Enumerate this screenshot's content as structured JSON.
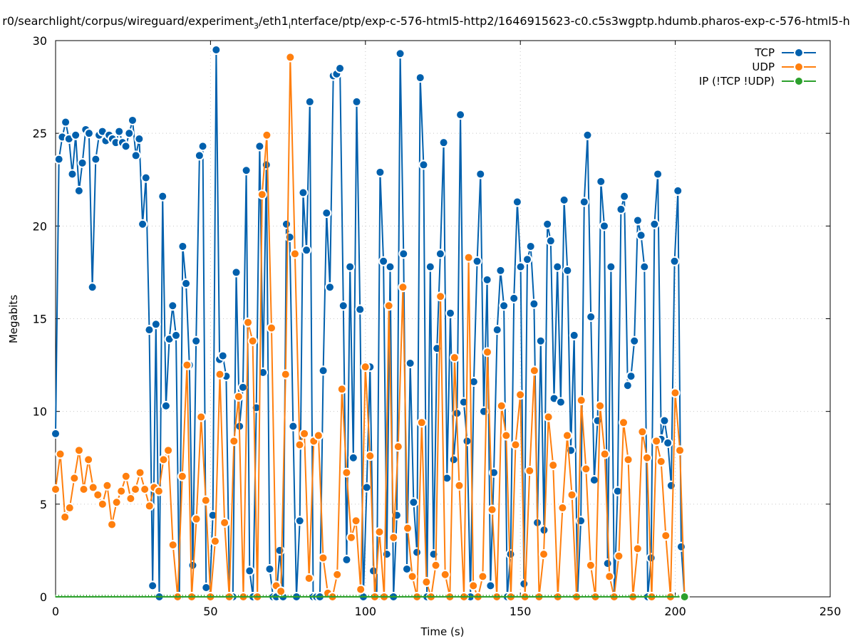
{
  "chart_data": {
    "type": "line",
    "title_parts": [
      "r0/searchlight/corpus/wireguard/experiment",
      "3",
      "/eth1",
      "i",
      "nterface/ptp/exp-c-576-html5-http2/1646915623-c0.c5s3wgptp.hdumb.pharos-exp-c-576-html5-h"
    ],
    "xlabel": "Time (s)",
    "ylabel": "Megabits",
    "xlim": [
      0,
      250
    ],
    "ylim": [
      0,
      30
    ],
    "xticks": [
      "0",
      "50",
      "100",
      "150",
      "200",
      "250"
    ],
    "yticks": [
      "0",
      "5",
      "10",
      "15",
      "20",
      "25",
      "30"
    ],
    "grid": true,
    "legend_position": "top-right",
    "x_end": 203,
    "series": [
      {
        "name": "TCP",
        "color": "#0060ad",
        "values": [
          8.8,
          23.6,
          24.8,
          25.6,
          24.7,
          22.8,
          24.9,
          21.9,
          23.4,
          25.2,
          25.0,
          16.7,
          23.6,
          24.9,
          25.1,
          24.6,
          24.9,
          24.7,
          24.5,
          25.1,
          24.5,
          24.3,
          25.0,
          25.7,
          23.8,
          24.7,
          20.1,
          22.6,
          14.4,
          0.6,
          14.7,
          0,
          21.6,
          10.3,
          13.9,
          15.7,
          14.1,
          0,
          18.9,
          16.9,
          12.5,
          1.7,
          13.8,
          23.8,
          24.3,
          0.5,
          0,
          4.4,
          29.5,
          12.8,
          13.0,
          11.9,
          0,
          0,
          17.5,
          9.2,
          11.3,
          23.0,
          1.4,
          0,
          10.2,
          24.3,
          12.1,
          23.3,
          1.5,
          0,
          0,
          2.5,
          0,
          20.1,
          19.4,
          9.2,
          0,
          4.1,
          21.8,
          18.7,
          26.7,
          0,
          0,
          0,
          12.2,
          20.7,
          16.7,
          28.1,
          28.2,
          28.5,
          15.7,
          2.0,
          17.8,
          7.5,
          26.7,
          15.5,
          0,
          5.9,
          12.4,
          1.4,
          0,
          22.9,
          18.1,
          2.3,
          17.8,
          0,
          4.4,
          29.3,
          18.5,
          1.5,
          12.6,
          5.1,
          2.4,
          28.0,
          23.3,
          0,
          17.8,
          2.3,
          13.4,
          18.5,
          24.5,
          6.4,
          15.3,
          7.4,
          9.9,
          26.0,
          10.5,
          8.4,
          0,
          11.6,
          18.1,
          22.8,
          10.0,
          17.1,
          0.6,
          6.7,
          14.4,
          17.6,
          15.7,
          0,
          2.3,
          16.1,
          21.3,
          17.8,
          0.7,
          18.2,
          18.9,
          15.8,
          4.0,
          13.8,
          3.6,
          20.1,
          19.2,
          10.7,
          17.8,
          10.5,
          21.4,
          17.6,
          7.9,
          14.1,
          0,
          4.1,
          21.3,
          24.9,
          15.1,
          6.3,
          9.5,
          22.4,
          20.0,
          1.8,
          17.8,
          0,
          5.7,
          20.9,
          21.6,
          11.4,
          11.9,
          13.8,
          20.3,
          19.5,
          17.8,
          0,
          2.1,
          20.1,
          22.8,
          8.5,
          9.5,
          8.3,
          6.0,
          18.1,
          21.9,
          2.7,
          0
        ]
      },
      {
        "name": "UDP",
        "color": "#ff7f0e",
        "values": [
          5.8,
          7.7,
          4.3,
          4.8,
          6.4,
          7.9,
          5.8,
          7.4,
          5.9,
          5.5,
          5.0,
          6.0,
          3.9,
          5.1,
          5.7,
          6.5,
          5.3,
          5.8,
          6.7,
          5.8,
          4.9,
          5.9,
          5.7,
          7.4,
          7.9,
          2.8,
          0,
          6.5,
          12.5,
          0,
          4.2,
          9.7,
          5.2,
          0,
          3.0,
          12.0,
          4.0,
          0,
          8.4,
          10.8,
          0,
          14.8,
          13.8,
          0,
          21.7,
          24.9,
          14.5,
          0.6,
          0.3,
          12.0,
          29.1,
          18.5,
          8.2,
          8.8,
          1.0,
          8.4,
          8.7,
          2.1,
          0.2,
          0,
          1.2,
          11.2,
          6.7,
          3.2,
          4.1,
          0.4,
          12.4,
          7.6,
          0,
          3.5,
          0,
          15.7,
          3.2,
          8.1,
          16.7,
          3.7,
          1.1,
          0,
          9.4,
          0.8,
          0,
          1.7,
          16.2,
          1.2,
          0,
          12.9,
          6.0,
          0,
          18.3,
          0.6,
          0,
          1.1,
          13.2,
          4.7,
          0,
          10.3,
          8.7,
          0,
          8.2,
          10.9,
          0,
          6.8,
          12.2,
          0,
          2.3,
          9.7,
          7.1,
          0,
          4.8,
          8.7,
          5.5,
          0,
          10.6,
          6.9,
          1.7,
          0,
          10.3,
          7.7,
          1.1,
          0,
          2.2,
          9.4,
          7.4,
          0,
          2.6,
          8.9,
          7.5,
          0,
          8.4,
          7.3,
          3.3,
          0,
          11.0,
          7.9,
          0
        ]
      },
      {
        "name": "IP (!TCP  !UDP)",
        "color": "#2ca02c",
        "values": [
          0,
          0
        ]
      }
    ]
  }
}
